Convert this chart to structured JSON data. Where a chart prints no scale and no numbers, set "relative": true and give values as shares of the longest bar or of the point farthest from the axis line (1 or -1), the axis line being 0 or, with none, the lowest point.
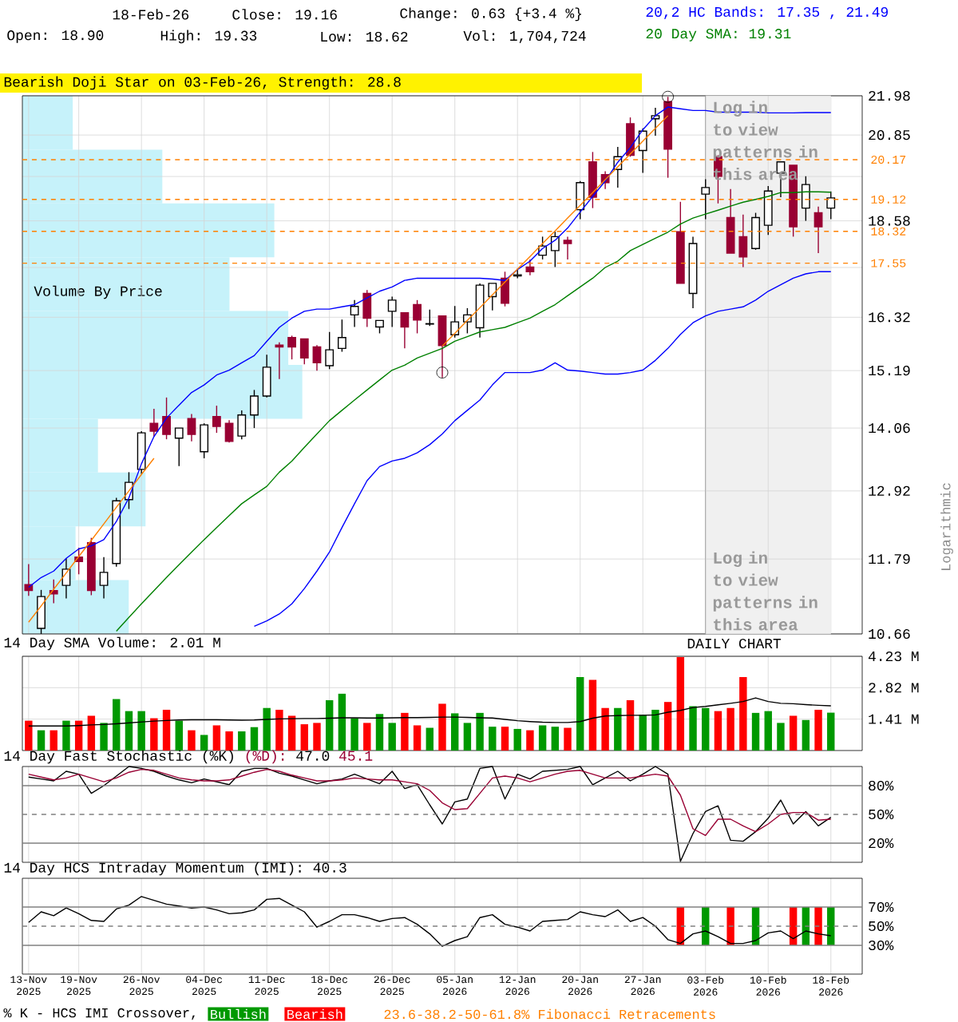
{
  "chart_data": [
    {
      "type": "candlestick",
      "categories": [
        "13-Nov 2025",
        null,
        null,
        null,
        "19-Nov 2025",
        null,
        null,
        null,
        null,
        "26-Nov 2025",
        null,
        null,
        null,
        null,
        "04-Dec 2025",
        null,
        null,
        null,
        null,
        "11-Dec 2025",
        null,
        null,
        null,
        null,
        "18-Dec 2025",
        null,
        null,
        null,
        null,
        "26-Dec 2025",
        null,
        null,
        null,
        null,
        "05-Jan 2026",
        null,
        null,
        null,
        null,
        "12-Jan 2026",
        null,
        null,
        null,
        null,
        "20-Jan 2026",
        null,
        null,
        null,
        null,
        "27-Jan 2026",
        null,
        null,
        null,
        null,
        "03-Feb 2026",
        null,
        null,
        null,
        null,
        "10-Feb 2026",
        null,
        null,
        null,
        null,
        "18-Feb 2026"
      ],
      "tick_labels": "y",
      "log": true,
      "grid": true,
      "ylabel": "Logarithmic",
      "ylim": [
        10.66,
        21.98
      ],
      "yticks": [
        10.66,
        11.79,
        12.92,
        14.06,
        15.19,
        16.32,
        {
          "value": 17.45,
          "label": null
        },
        18.58,
        {
          "value": 19.72,
          "label": null
        },
        20.85,
        21.98
      ],
      "series": [
        {
          "type": "candlestick",
          "colors": [
            "#990033",
            "#ffffff",
            "#990033",
            "#ffffff",
            "#990033",
            "#990033",
            "#ffffff",
            "#ffffff",
            "#ffffff",
            "#ffffff",
            "#990033",
            "#990033",
            "#ffffff",
            "#990033",
            "#ffffff",
            "#990033",
            "#990033",
            "#ffffff",
            "#ffffff",
            "#ffffff",
            "#990033",
            "#990033",
            "#990033",
            "#990033",
            "#ffffff",
            "#ffffff",
            "#ffffff",
            "#990033",
            "#ffffff",
            "#ffffff",
            "#990033",
            "#990033",
            "#ffffff",
            "#990033",
            "#ffffff",
            "#ffffff",
            "#ffffff",
            "#ffffff",
            "#990033",
            "#ffffff",
            "#990033",
            "#ffffff",
            "#ffffff",
            "#990033",
            "#ffffff",
            "#990033",
            "#990033",
            "#ffffff",
            "#990033",
            "#ffffff",
            "#ffffff",
            "#990033",
            "#990033",
            "#ffffff",
            "#ffffff",
            "#990033",
            "#990033",
            "#990033",
            "#ffffff",
            "#ffffff",
            "#ffffff",
            "#990033",
            "#ffffff",
            "#990033",
            "#ffffff"
          ],
          "ohlc": [
            [
              11.39,
              11.71,
              11.22,
              11.3
            ],
            [
              10.74,
              11.31,
              10.66,
              11.21
            ],
            [
              11.3,
              11.47,
              11.11,
              11.25
            ],
            [
              11.38,
              11.8,
              11.18,
              11.63
            ],
            [
              11.82,
              11.97,
              11.55,
              11.75
            ],
            [
              12.05,
              12.13,
              11.23,
              11.3
            ],
            [
              11.38,
              11.82,
              11.18,
              11.58
            ],
            [
              11.72,
              12.8,
              11.67,
              12.75
            ],
            [
              12.77,
              13.25,
              12.61,
              13.07
            ],
            [
              13.3,
              14.0,
              13.22,
              13.97
            ],
            [
              14.15,
              14.43,
              13.9,
              14.0
            ],
            [
              14.28,
              14.65,
              13.85,
              13.94
            ],
            [
              13.87,
              14.06,
              13.36,
              14.06
            ],
            [
              14.24,
              14.33,
              13.81,
              13.94
            ],
            [
              13.62,
              14.15,
              13.5,
              14.12
            ],
            [
              14.28,
              14.49,
              13.97,
              14.09
            ],
            [
              14.15,
              14.21,
              13.79,
              13.81
            ],
            [
              13.91,
              14.4,
              13.85,
              14.31
            ],
            [
              14.31,
              14.8,
              14.06,
              14.68
            ],
            [
              14.68,
              15.52,
              14.65,
              15.26
            ],
            [
              15.72,
              15.78,
              15.02,
              15.68
            ],
            [
              15.88,
              15.92,
              15.42,
              15.68
            ],
            [
              15.85,
              15.85,
              15.32,
              15.45
            ],
            [
              15.68,
              15.72,
              15.19,
              15.35
            ],
            [
              15.29,
              16.0,
              15.22,
              15.62
            ],
            [
              15.65,
              16.27,
              15.58,
              15.88
            ],
            [
              16.37,
              16.7,
              16.11,
              16.56
            ],
            [
              16.85,
              16.93,
              16.11,
              16.3
            ],
            [
              16.11,
              16.25,
              15.97,
              16.25
            ],
            [
              16.45,
              16.78,
              16.11,
              16.7
            ],
            [
              16.42,
              16.42,
              15.65,
              16.11
            ],
            [
              16.6,
              16.7,
              15.97,
              16.26
            ],
            [
              16.17,
              16.49,
              16.13,
              16.18
            ],
            [
              16.35,
              16.35,
              15.05,
              15.71
            ],
            [
              15.94,
              16.57,
              15.88,
              16.22
            ],
            [
              16.22,
              16.52,
              15.97,
              16.37
            ],
            [
              16.09,
              17.08,
              15.88,
              17.04
            ],
            [
              16.78,
              17.08,
              16.47,
              17.08
            ],
            [
              17.2,
              17.35,
              16.56,
              16.63
            ],
            [
              17.25,
              17.42,
              17.2,
              17.28
            ],
            [
              17.46,
              17.64,
              17.27,
              17.35
            ],
            [
              17.74,
              18.19,
              17.64,
              17.96
            ],
            [
              17.85,
              18.31,
              17.46,
              18.19
            ],
            [
              18.1,
              18.19,
              17.64,
              18.02
            ],
            [
              18.86,
              19.6,
              18.62,
              19.56
            ],
            [
              20.11,
              20.38,
              18.9,
              19.18
            ],
            [
              19.77,
              19.86,
              19.39,
              19.56
            ],
            [
              19.91,
              20.52,
              19.43,
              20.25
            ],
            [
              21.17,
              21.35,
              20.25,
              20.29
            ],
            [
              20.42,
              21.04,
              19.82,
              20.96
            ],
            [
              21.31,
              21.63,
              20.83,
              21.4
            ],
            [
              21.81,
              21.95,
              19.69,
              20.46
            ],
            [
              18.31,
              19.06,
              17.08,
              17.08
            ],
            [
              16.85,
              18.19,
              16.52,
              18.02
            ],
            [
              19.26,
              19.65,
              18.62,
              19.43
            ],
            [
              20.25,
              20.29,
              19.02,
              19.73
            ],
            [
              18.66,
              19.39,
              17.79,
              17.79
            ],
            [
              18.19,
              18.74,
              17.46,
              17.7
            ],
            [
              17.9,
              18.78,
              17.87,
              18.66
            ],
            [
              18.47,
              19.47,
              18.23,
              19.34
            ],
            [
              19.81,
              20.11,
              19.18,
              20.11
            ],
            [
              20.02,
              20.02,
              18.19,
              18.43
            ],
            [
              18.9,
              19.73,
              18.58,
              19.51
            ],
            [
              18.78,
              18.94,
              17.79,
              18.43
            ],
            [
              18.9,
              19.33,
              18.62,
              19.16
            ]
          ]
        },
        {
          "type": "line",
          "name": "20,2 HC Bands: 17.35 , 21.49",
          "color": "#0000ff",
          "values": [
            11.35,
            11.5,
            11.6,
            11.8,
            11.95,
            12.0,
            12.1,
            12.4,
            12.8,
            13.4,
            13.9,
            14.25,
            14.5,
            14.75,
            14.9,
            15.1,
            15.2,
            15.35,
            15.5,
            15.8,
            16.1,
            16.3,
            16.45,
            16.5,
            16.5,
            16.55,
            16.6,
            16.75,
            16.9,
            17.0,
            17.15,
            17.2,
            17.2,
            17.2,
            17.2,
            17.2,
            17.2,
            17.18,
            17.15,
            17.4,
            17.6,
            17.9,
            18.1,
            18.4,
            18.8,
            19.2,
            19.6,
            20.1,
            20.5,
            21.0,
            21.4,
            21.65,
            21.6,
            21.55,
            21.55,
            21.5,
            21.5,
            21.5,
            21.5,
            21.48,
            21.48,
            21.48,
            21.49,
            21.49,
            21.49
          ]
        },
        {
          "type": "line",
          "color": "#0000ff",
          "values": [
            null,
            null,
            null,
            null,
            null,
            null,
            null,
            null,
            null,
            null,
            null,
            null,
            null,
            null,
            null,
            null,
            null,
            null,
            10.77,
            10.85,
            10.95,
            11.1,
            11.33,
            11.6,
            11.9,
            12.3,
            12.7,
            13.1,
            13.35,
            13.45,
            13.5,
            13.6,
            13.75,
            13.95,
            14.2,
            14.4,
            14.6,
            14.9,
            15.15,
            15.15,
            15.15,
            15.2,
            15.35,
            15.2,
            15.18,
            15.15,
            15.12,
            15.12,
            15.15,
            15.2,
            15.4,
            15.65,
            15.95,
            16.2,
            16.35,
            16.45,
            16.5,
            16.55,
            16.7,
            16.9,
            17.05,
            17.2,
            17.3,
            17.35,
            17.35
          ]
        },
        {
          "type": "line",
          "name": "20 Day SMA: 19.31",
          "color": "#008000",
          "values": [
            null,
            null,
            null,
            null,
            null,
            null,
            null,
            10.7,
            10.9,
            11.1,
            11.3,
            11.5,
            11.7,
            11.9,
            12.1,
            12.3,
            12.5,
            12.7,
            12.85,
            13.0,
            13.25,
            13.45,
            13.7,
            13.95,
            14.2,
            14.4,
            14.6,
            14.8,
            15.0,
            15.2,
            15.3,
            15.45,
            15.55,
            15.65,
            15.8,
            15.9,
            16.0,
            16.05,
            16.1,
            16.2,
            16.3,
            16.45,
            16.6,
            16.8,
            17.0,
            17.2,
            17.45,
            17.6,
            17.85,
            18.0,
            18.15,
            18.3,
            18.5,
            18.65,
            18.75,
            18.85,
            18.95,
            19.05,
            19.12,
            19.2,
            19.3,
            19.3,
            19.32,
            19.32,
            19.31
          ]
        },
        {
          "type": "line",
          "color": "#ff8000",
          "values": [
            10.83,
            11.07,
            11.32,
            11.57,
            11.83,
            12.09,
            12.36,
            12.64,
            12.92,
            13.21,
            13.5,
            null,
            null,
            null,
            null,
            null,
            null,
            null,
            null,
            null,
            null,
            null,
            null,
            null,
            null,
            null,
            null,
            null,
            null,
            null,
            null,
            null,
            null,
            null,
            null,
            null,
            null,
            null,
            null,
            null,
            null,
            null,
            null,
            null,
            null,
            null,
            null,
            null,
            null,
            null,
            null,
            null,
            null,
            null,
            null,
            null,
            null,
            null,
            null,
            null,
            null,
            null,
            null,
            null,
            null
          ]
        },
        {
          "type": "line",
          "color": "#ff8000",
          "values": [
            null,
            null,
            null,
            null,
            null,
            null,
            null,
            null,
            null,
            null,
            null,
            null,
            null,
            null,
            null,
            null,
            null,
            null,
            null,
            null,
            null,
            null,
            null,
            null,
            null,
            null,
            null,
            null,
            null,
            null,
            null,
            null,
            null,
            15.7,
            15.97,
            16.25,
            16.53,
            16.82,
            17.11,
            17.41,
            17.71,
            18.02,
            18.33,
            18.65,
            18.97,
            19.3,
            19.64,
            19.98,
            20.33,
            20.68,
            21.04,
            21.4,
            null,
            null,
            null,
            null,
            null,
            null,
            null,
            null,
            null,
            null,
            null,
            null,
            null
          ]
        },
        {
          "type": "scatter",
          "marker": "circle",
          "color": "#000000",
          "values": [
            null,
            null,
            null,
            null,
            null,
            null,
            null,
            null,
            null,
            null,
            null,
            null,
            null,
            null,
            null,
            null,
            null,
            null,
            null,
            null,
            null,
            null,
            null,
            null,
            null,
            null,
            null,
            null,
            null,
            null,
            null,
            null,
            null,
            15.15,
            null,
            null,
            null,
            null,
            null,
            null,
            null,
            null,
            null,
            null,
            null,
            null,
            null,
            null,
            null,
            null,
            null,
            21.95,
            null,
            null,
            null,
            null,
            null,
            null,
            null,
            null,
            null,
            null,
            null,
            null,
            null
          ]
        }
      ],
      "ref_lines": [
        {
          "axis": "y",
          "value": 20.17,
          "label": "20.17",
          "color": "#ff8000",
          "line_style": "dashed"
        },
        {
          "axis": "y",
          "value": 19.12,
          "label": "19.12",
          "color": "#ff8000",
          "line_style": "dashed"
        },
        {
          "axis": "y",
          "value": 18.32,
          "label": "18.32",
          "color": "#ff8000",
          "line_style": "dashed"
        },
        {
          "axis": "y",
          "value": 17.55,
          "label": "17.55",
          "color": "#ff8000",
          "line_style": "dashed"
        }
      ],
      "bands": [
        {
          "axis": "x",
          "from": "03-Feb 2026",
          "to": "18-Feb 2026",
          "color": "#f0f0f0"
        }
      ],
      "annotations": [
        "18-Feb-26",
        "Close: 19.16",
        "Change: 0.63 {+3.4 %}",
        "Open: 18.90",
        "High: 19.33",
        "Low: 18.62",
        "Vol: 1,704,724",
        "Bearish Doji Star on 03-Feb-26, Strength: 28.8",
        "Log in to view patterns in this area",
        "Log in to view patterns in this area",
        "23.6-38.2-50-61.8% Fibonacci Retracements"
      ]
    },
    {
      "type": "bar",
      "orientation": "horizontal",
      "relative": true,
      "title": "Volume By Price",
      "categories": [
        null,
        null,
        null,
        null,
        null,
        null,
        null,
        null,
        null,
        null
      ],
      "color": "#c6f2fa",
      "values": [
        0.18,
        0.5,
        0.9,
        0.74,
        0.95,
        1,
        0.27,
        0.44,
        0.19,
        0.38
      ]
    },
    {
      "type": "bar",
      "title": "14 Day SMA Volume: 2.01 M",
      "annotations": [
        "DAILY CHART"
      ],
      "tick_labels": "y",
      "grid": true,
      "categories": [
        "13-Nov 2025",
        null,
        null,
        null,
        "19-Nov 2025",
        null,
        null,
        null,
        null,
        "26-Nov 2025",
        null,
        null,
        null,
        null,
        "04-Dec 2025",
        null,
        null,
        null,
        null,
        "11-Dec 2025",
        null,
        null,
        null,
        null,
        "18-Dec 2025",
        null,
        null,
        null,
        null,
        "26-Dec 2025",
        null,
        null,
        null,
        null,
        "05-Jan 2026",
        null,
        null,
        null,
        null,
        "12-Jan 2026",
        null,
        null,
        null,
        null,
        "20-Jan 2026",
        null,
        null,
        null,
        null,
        "27-Jan 2026",
        null,
        null,
        null,
        null,
        "03-Feb 2026",
        null,
        null,
        null,
        null,
        "10-Feb 2026",
        null,
        null,
        null,
        null,
        "18-Feb 2026"
      ],
      "ylim": [
        0,
        4.23
      ],
      "yticks": [
        {
          "value": 1.41,
          "label": "1.41 M"
        },
        {
          "value": 2.82,
          "label": "2.82 M"
        },
        {
          "value": 4.23,
          "label": "4.23 M"
        }
      ],
      "series": [
        {
          "type": "bar",
          "values": [
            1.34,
            0.91,
            0.91,
            1.34,
            1.34,
            1.56,
            1.24,
            2.31,
            1.77,
            1.77,
            1.45,
            1.83,
            1.34,
            0.91,
            0.7,
            1.13,
            0.86,
            0.86,
            1.05,
            1.91,
            1.83,
            1.56,
            1.18,
            1.24,
            2.26,
            2.55,
            1.45,
            1.24,
            1.64,
            1.24,
            1.69,
            1.13,
            1.02,
            2.1,
            1.67,
            1.24,
            1.69,
            1.07,
            1.07,
            0.97,
            0.91,
            1.13,
            1.07,
            1.02,
            3.3,
            3.17,
            1.91,
            1.91,
            2.26,
            1.61,
            1.83,
            2.18,
            4.19,
            1.99,
            1.91,
            1.77,
            1.91,
            3.3,
            1.69,
            1.77,
            1.24,
            1.56,
            1.37,
            1.83,
            1.7
          ],
          "colors": [
            "#ff0000",
            "#009900",
            "#ff0000",
            "#009900",
            "#ff0000",
            "#ff0000",
            "#009900",
            "#009900",
            "#009900",
            "#009900",
            "#ff0000",
            "#ff0000",
            "#009900",
            "#ff0000",
            "#009900",
            "#ff0000",
            "#ff0000",
            "#009900",
            "#009900",
            "#009900",
            "#ff0000",
            "#ff0000",
            "#ff0000",
            "#ff0000",
            "#009900",
            "#009900",
            "#009900",
            "#ff0000",
            "#009900",
            "#009900",
            "#ff0000",
            "#ff0000",
            "#009900",
            "#ff0000",
            "#009900",
            "#009900",
            "#009900",
            "#009900",
            "#ff0000",
            "#009900",
            "#ff0000",
            "#009900",
            "#009900",
            "#ff0000",
            "#009900",
            "#ff0000",
            "#ff0000",
            "#009900",
            "#ff0000",
            "#009900",
            "#009900",
            "#ff0000",
            "#ff0000",
            "#009900",
            "#009900",
            "#ff0000",
            "#ff0000",
            "#ff0000",
            "#009900",
            "#009900",
            "#009900",
            "#ff0000",
            "#009900",
            "#ff0000",
            "#009900"
          ]
        },
        {
          "type": "line",
          "color": "#000000",
          "values": [
            1.1,
            1.1,
            1.1,
            1.1,
            1.12,
            1.15,
            1.17,
            1.2,
            1.24,
            1.28,
            1.32,
            1.35,
            1.37,
            1.38,
            1.38,
            1.38,
            1.37,
            1.36,
            1.37,
            1.4,
            1.42,
            1.43,
            1.44,
            1.44,
            1.45,
            1.47,
            1.47,
            1.46,
            1.46,
            1.47,
            1.48,
            1.48,
            1.49,
            1.5,
            1.5,
            1.49,
            1.47,
            1.46,
            1.4,
            1.34,
            1.3,
            1.27,
            1.26,
            1.26,
            1.3,
            1.45,
            1.55,
            1.57,
            1.58,
            1.58,
            1.6,
            1.72,
            1.8,
            1.93,
            1.98,
            2.05,
            2.12,
            2.2,
            2.36,
            2.2,
            2.12,
            2.1,
            2.06,
            2.03,
            2.01
          ]
        }
      ]
    },
    {
      "type": "line",
      "title": "14 Day Fast Stochastic (%K)",
      "annotations": [
        "(%D):",
        "47.0",
        "45.1"
      ],
      "tick_labels": "y",
      "grid": "x",
      "categories": [
        "13-Nov 2025",
        null,
        null,
        null,
        "19-Nov 2025",
        null,
        null,
        null,
        null,
        "26-Nov 2025",
        null,
        null,
        null,
        null,
        "04-Dec 2025",
        null,
        null,
        null,
        null,
        "11-Dec 2025",
        null,
        null,
        null,
        null,
        "18-Dec 2025",
        null,
        null,
        null,
        null,
        "26-Dec 2025",
        null,
        null,
        null,
        null,
        "05-Jan 2026",
        null,
        null,
        null,
        null,
        "12-Jan 2026",
        null,
        null,
        null,
        null,
        "20-Jan 2026",
        null,
        null,
        null,
        null,
        "27-Jan 2026",
        null,
        null,
        null,
        null,
        "03-Feb 2026",
        null,
        null,
        null,
        null,
        "10-Feb 2026",
        null,
        null,
        null,
        null,
        "18-Feb 2026"
      ],
      "ylim": [
        0,
        100
      ],
      "yticks": [
        {
          "value": 20,
          "label": "20%"
        },
        {
          "value": 50,
          "label": "50%"
        },
        {
          "value": 80,
          "label": "80%"
        }
      ],
      "ref_lines": [
        {
          "axis": "y",
          "value": 80,
          "color": "#808080",
          "line_style": "solid"
        },
        {
          "axis": "y",
          "value": 50,
          "color": "#808080",
          "line_style": "dashed"
        },
        {
          "axis": "y",
          "value": 20,
          "color": "#808080",
          "line_style": "solid"
        }
      ],
      "series": [
        {
          "type": "line",
          "color": "#000000",
          "values": [
            89,
            87,
            85,
            95,
            92,
            72,
            80,
            90,
            100,
            98,
            95,
            90,
            86,
            83,
            87,
            84,
            81,
            95,
            98,
            98,
            93,
            90,
            86,
            82,
            85,
            87,
            92,
            87,
            82,
            95,
            77,
            81,
            60,
            40,
            63,
            66,
            98,
            100,
            66,
            92,
            87,
            95,
            96,
            97,
            100,
            81,
            88,
            95,
            85,
            92,
            100,
            92,
            1,
            30,
            53,
            59,
            23,
            22,
            32,
            46,
            65,
            40,
            53,
            38,
            47
          ]
        },
        {
          "type": "line",
          "color": "#990033",
          "values": [
            92,
            89,
            86,
            88,
            92,
            88,
            84,
            88,
            94,
            97,
            96,
            92,
            88,
            86,
            85,
            85,
            86,
            90,
            94,
            97,
            95,
            91,
            88,
            85,
            85,
            86,
            88,
            87,
            86,
            86,
            84,
            82,
            75,
            62,
            55,
            56,
            72,
            88,
            90,
            88,
            84,
            88,
            92,
            95,
            96,
            92,
            88,
            88,
            88,
            90,
            92,
            90,
            70,
            35,
            28,
            45,
            45,
            38,
            32,
            40,
            50,
            52,
            52,
            44,
            45
          ]
        }
      ]
    },
    {
      "type": "line",
      "title": "14 Day HCS Intraday Momentum (IMI): 40.3",
      "grid": "x",
      "legend": "bottom",
      "legend_title": "% K - HCS IMI Crossover,",
      "categories": [
        "13-Nov 2025",
        null,
        null,
        null,
        "19-Nov 2025",
        null,
        null,
        null,
        null,
        "26-Nov 2025",
        null,
        null,
        null,
        null,
        "04-Dec 2025",
        null,
        null,
        null,
        null,
        "11-Dec 2025",
        null,
        null,
        null,
        null,
        "18-Dec 2025",
        null,
        null,
        null,
        null,
        "26-Dec 2025",
        null,
        null,
        null,
        null,
        "05-Jan 2026",
        null,
        null,
        null,
        null,
        "12-Jan 2026",
        null,
        null,
        null,
        null,
        "20-Jan 2026",
        null,
        null,
        null,
        null,
        "27-Jan 2026",
        null,
        null,
        null,
        null,
        "03-Feb 2026",
        null,
        null,
        null,
        null,
        "10-Feb 2026",
        null,
        null,
        null,
        null,
        "18-Feb 2026"
      ],
      "ylim": [
        0,
        100
      ],
      "yticks": [
        {
          "value": 30,
          "label": "30%"
        },
        {
          "value": 50,
          "label": "50%"
        },
        {
          "value": 70,
          "label": "70%"
        }
      ],
      "ref_lines": [
        {
          "axis": "y",
          "value": 70,
          "color": "#808080",
          "line_style": "solid"
        },
        {
          "axis": "y",
          "value": 50,
          "color": "#808080",
          "line_style": "dashed"
        },
        {
          "axis": "y",
          "value": 30,
          "color": "#808080",
          "line_style": "solid"
        }
      ],
      "series": [
        {
          "type": "bar",
          "name": "Bullish",
          "color": "#009900",
          "values": [
            null,
            null,
            null,
            null,
            null,
            null,
            null,
            null,
            null,
            null,
            null,
            null,
            null,
            null,
            null,
            null,
            null,
            null,
            null,
            null,
            null,
            null,
            null,
            null,
            null,
            null,
            null,
            null,
            null,
            null,
            null,
            null,
            null,
            null,
            null,
            null,
            null,
            null,
            null,
            null,
            null,
            null,
            null,
            null,
            null,
            null,
            null,
            null,
            null,
            null,
            null,
            null,
            null,
            null,
            40,
            null,
            null,
            null,
            40,
            null,
            null,
            null,
            40,
            null,
            40
          ],
          "base": [
            null,
            null,
            null,
            null,
            null,
            null,
            null,
            null,
            null,
            null,
            null,
            null,
            null,
            null,
            null,
            null,
            null,
            null,
            null,
            null,
            null,
            null,
            null,
            null,
            null,
            null,
            null,
            null,
            null,
            null,
            null,
            null,
            null,
            null,
            null,
            null,
            null,
            null,
            null,
            null,
            null,
            null,
            null,
            null,
            null,
            null,
            null,
            null,
            null,
            null,
            null,
            null,
            null,
            null,
            30,
            null,
            null,
            null,
            30,
            null,
            null,
            null,
            30,
            null,
            30
          ]
        },
        {
          "type": "bar",
          "name": "Bearish",
          "color": "#ff0000",
          "values": [
            null,
            null,
            null,
            null,
            null,
            null,
            null,
            null,
            null,
            null,
            null,
            null,
            null,
            null,
            null,
            null,
            null,
            null,
            null,
            null,
            null,
            null,
            null,
            null,
            null,
            null,
            null,
            null,
            null,
            null,
            null,
            null,
            null,
            null,
            null,
            null,
            null,
            null,
            null,
            null,
            null,
            null,
            null,
            null,
            null,
            null,
            null,
            null,
            null,
            null,
            null,
            null,
            40,
            null,
            null,
            null,
            40,
            null,
            null,
            null,
            null,
            40,
            null,
            40,
            null
          ],
          "base": [
            null,
            null,
            null,
            null,
            null,
            null,
            null,
            null,
            null,
            null,
            null,
            null,
            null,
            null,
            null,
            null,
            null,
            null,
            null,
            null,
            null,
            null,
            null,
            null,
            null,
            null,
            null,
            null,
            null,
            null,
            null,
            null,
            null,
            null,
            null,
            null,
            null,
            null,
            null,
            null,
            null,
            null,
            null,
            null,
            null,
            null,
            null,
            null,
            null,
            null,
            null,
            null,
            30,
            null,
            null,
            null,
            30,
            null,
            null,
            null,
            null,
            30,
            null,
            30,
            null
          ]
        },
        {
          "type": "line",
          "color": "#000000",
          "values": [
            54,
            65,
            61,
            69,
            63,
            56,
            55,
            68,
            72,
            81,
            77,
            73,
            71,
            69,
            70,
            67,
            63,
            64,
            67,
            78,
            79,
            72,
            65,
            49,
            55,
            62,
            62,
            59,
            55,
            58,
            59,
            52,
            42,
            29,
            35,
            39,
            59,
            62,
            52,
            49,
            45,
            55,
            56,
            57,
            65,
            62,
            60,
            67,
            55,
            59,
            50,
            36,
            32,
            42,
            45,
            39,
            32,
            32,
            35,
            43,
            45,
            37,
            45,
            42,
            40
          ]
        }
      ]
    }
  ]
}
